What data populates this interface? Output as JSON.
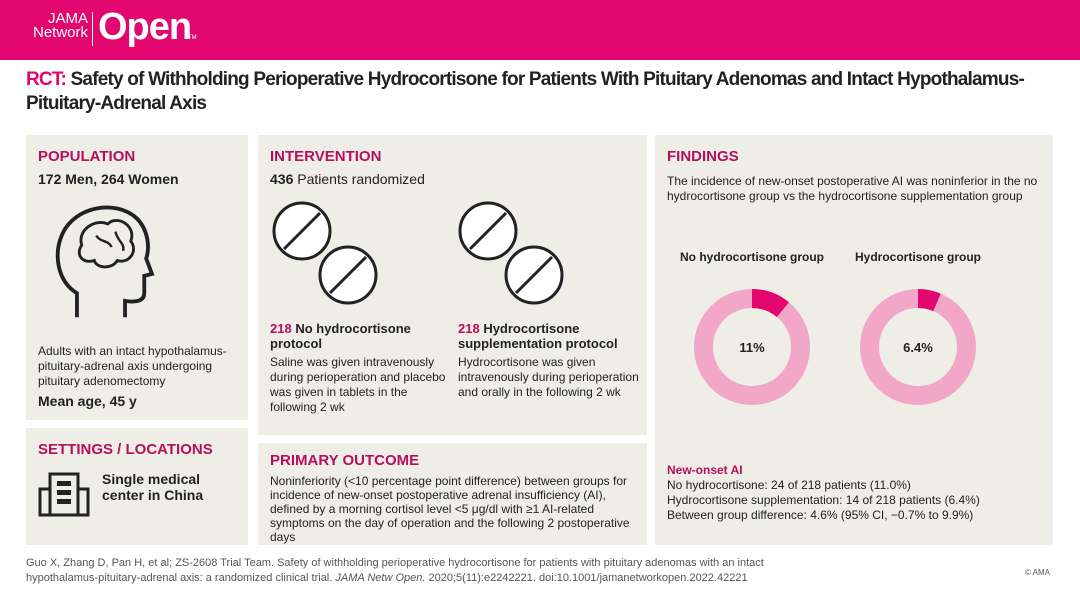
{
  "brand": {
    "line1": "JAMA",
    "line2": "Network",
    "name": "Open",
    "tm": "TM",
    "color": "#E2066F"
  },
  "title": {
    "prefix": "RCT:",
    "text": " Safety of Withholding Perioperative Hydrocortisone for Patients With Pituitary Adenomas and Intact Hypothalamus-Pituitary-Adrenal Axis"
  },
  "population": {
    "heading": "POPULATION",
    "counts": "172 Men, 264 Women",
    "icon": "head-brain-icon",
    "desc": "Adults with an intact hypothalamus-pituitary-adrenal axis undergoing pituitary adenomectomy",
    "mean_age": "Mean age, 45 y"
  },
  "settings": {
    "heading": "SETTINGS / LOCATIONS",
    "icon": "building-icon",
    "text": "Single medical center in China"
  },
  "intervention": {
    "heading": "INTERVENTION",
    "randomized_n": "436",
    "randomized_label": " Patients randomized",
    "arms": [
      {
        "n": "218",
        "name": " No hydrocortisone protocol",
        "desc": "Saline was given intravenously during perioperation and placebo was given in tablets in the following 2 wk",
        "icon": "pill-icon"
      },
      {
        "n": "218",
        "name": " Hydrocortisone supplementation protocol",
        "desc": "Hydrocortisone was given intravenously during perioperation and orally in the following 2 wk",
        "icon": "pill-icon"
      }
    ]
  },
  "primary": {
    "heading": "PRIMARY OUTCOME",
    "text": "Noninferiority (<10 percentage point difference) between groups for incidence of new-onset postoperative adrenal insufficiency (AI), defined by a morning cortisol level <5 μg/dl with ≥1 AI-related symptoms on the day of operation and the following 2 postoperative days"
  },
  "findings": {
    "heading": "FINDINGS",
    "summary": "The incidence of new-onset postoperative AI was noninferior in the no hydrocortisone group vs the hydrocortisone supplementation group",
    "outcome_label": "New-onset AI",
    "lines": [
      "No hydrocortisone: 24 of 218 patients (11.0%)",
      "Hydrocortisone supplementation: 14 of 218 patients (6.4%)",
      "Between group difference: 4.6% (95% CI, −0.7% to 9.9%)"
    ]
  },
  "chart_data": {
    "type": "pie",
    "series": [
      {
        "name": "No hydrocortisone group",
        "value": 11,
        "label": "11%"
      },
      {
        "name": "Hydrocortisone group",
        "value": 6.4,
        "label": "6.4%"
      }
    ],
    "colors": {
      "event": "#E2066F",
      "rest": "#F3A7C8"
    }
  },
  "footer": {
    "citation": "Guo X, Zhang D, Pan H, et al; ZS-2608 Trial Team. Safety of withholding perioperative hydrocortisone for patients with pituitary adenomas with an intact hypothalamus-pituitary-adrenal axis: a randomized clinical trial. ",
    "journal": "JAMA Netw Open.",
    "rest": " 2020;5(11):e2242221. doi:10.1001/jamanetworkopen.2022.42221",
    "copyright": "© AMA"
  }
}
